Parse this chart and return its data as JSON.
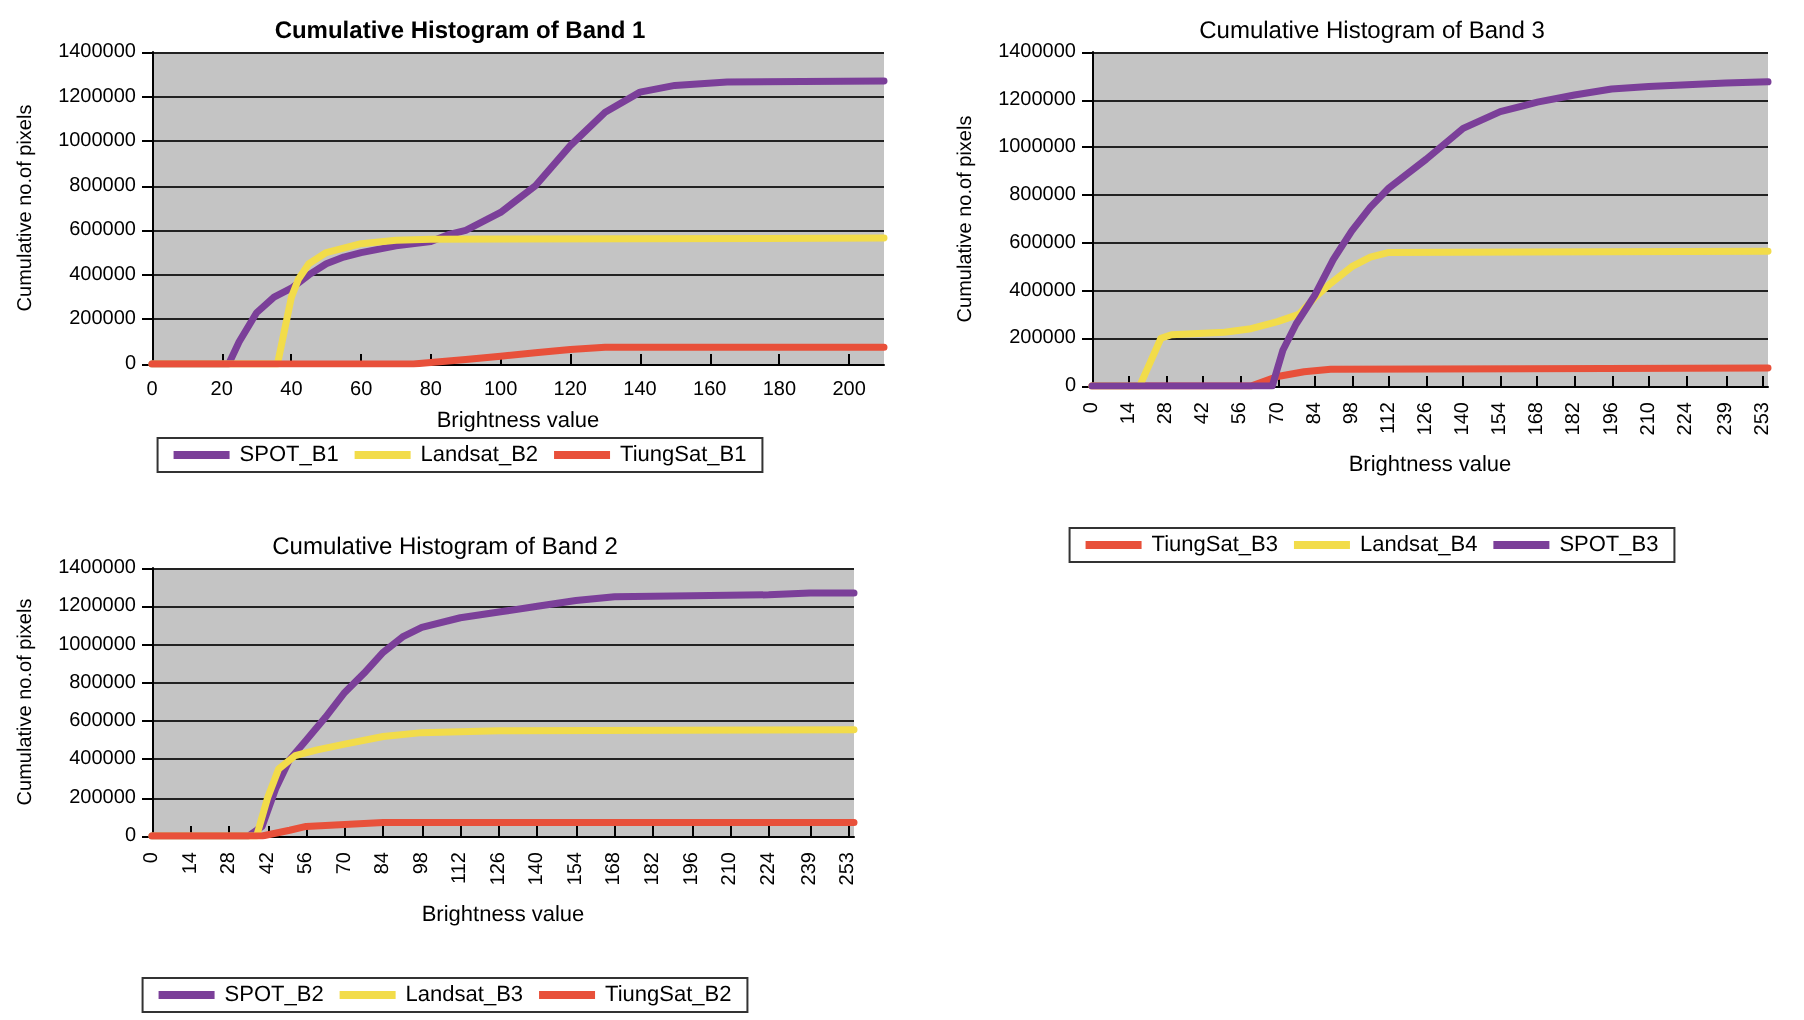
{
  "chart_data": [
    {
      "type": "line",
      "title": "Cumulative Histogram of Band 1",
      "xlabel": "Brightness value",
      "ylabel": "Cumulative no.of pixels",
      "xlim": [
        0,
        210
      ],
      "xticks": [
        0,
        20,
        40,
        60,
        80,
        100,
        120,
        140,
        160,
        180,
        200
      ],
      "ylim": [
        0,
        1400000
      ],
      "yticks": [
        0,
        200000,
        400000,
        600000,
        800000,
        1000000,
        1200000,
        1400000
      ],
      "grid": "y",
      "legend": "bottom",
      "series": [
        {
          "name": "SPOT_B1",
          "color": "#7b3f99",
          "x": [
            0,
            22,
            25,
            30,
            35,
            40,
            45,
            50,
            55,
            60,
            70,
            80,
            85,
            90,
            100,
            110,
            120,
            130,
            140,
            150,
            165,
            210
          ],
          "values": [
            0,
            0,
            100000,
            230000,
            300000,
            340000,
            400000,
            450000,
            480000,
            500000,
            530000,
            550000,
            580000,
            600000,
            680000,
            800000,
            980000,
            1130000,
            1220000,
            1250000,
            1265000,
            1270000
          ]
        },
        {
          "name": "Landsat_B2",
          "color": "#f2dc4a",
          "x": [
            0,
            36,
            38,
            40,
            42,
            45,
            50,
            55,
            60,
            70,
            80,
            210
          ],
          "values": [
            0,
            0,
            150000,
            300000,
            380000,
            450000,
            500000,
            520000,
            540000,
            555000,
            560000,
            565000
          ]
        },
        {
          "name": "TiungSat_B1",
          "color": "#e8503a",
          "x": [
            0,
            75,
            90,
            100,
            110,
            120,
            130,
            210
          ],
          "values": [
            0,
            0,
            20000,
            35000,
            50000,
            65000,
            75000,
            75000
          ]
        }
      ]
    },
    {
      "type": "line",
      "title": "Cumulative Histogram of Band 3",
      "xlabel": "Brightness value",
      "ylabel": "Cumulative no.of pixels",
      "xlim": [
        0,
        255
      ],
      "xticks": [
        0,
        14,
        28,
        42,
        56,
        70,
        84,
        98,
        112,
        126,
        140,
        154,
        168,
        182,
        196,
        210,
        224,
        239,
        253
      ],
      "ylim": [
        0,
        1400000
      ],
      "yticks": [
        0,
        200000,
        400000,
        600000,
        800000,
        1000000,
        1200000,
        1400000
      ],
      "grid": "y",
      "legend": "bottom",
      "series": [
        {
          "name": "TiungSat_B3",
          "color": "#e8503a",
          "x": [
            0,
            60,
            70,
            80,
            90,
            255
          ],
          "values": [
            0,
            0,
            40000,
            60000,
            70000,
            75000
          ]
        },
        {
          "name": "Landsat_B4",
          "color": "#f2dc4a",
          "x": [
            0,
            18,
            22,
            26,
            30,
            50,
            60,
            70,
            78,
            84,
            90,
            98,
            105,
            112,
            255
          ],
          "values": [
            0,
            0,
            100000,
            200000,
            215000,
            225000,
            240000,
            270000,
            300000,
            370000,
            430000,
            500000,
            540000,
            560000,
            565000
          ]
        },
        {
          "name": "SPOT_B3",
          "color": "#7b3f99",
          "x": [
            0,
            68,
            72,
            77,
            84,
            91,
            98,
            105,
            112,
            126,
            140,
            154,
            168,
            182,
            196,
            210,
            239,
            255
          ],
          "values": [
            0,
            0,
            150000,
            260000,
            380000,
            530000,
            650000,
            750000,
            830000,
            950000,
            1080000,
            1150000,
            1190000,
            1220000,
            1245000,
            1255000,
            1270000,
            1275000
          ]
        }
      ]
    },
    {
      "type": "line",
      "title": "Cumulative Histogram of Band 2",
      "xlabel": "Brightness value",
      "ylabel": "Cumulative no.of pixels",
      "xlim": [
        0,
        255
      ],
      "xticks": [
        0,
        14,
        28,
        42,
        56,
        70,
        84,
        98,
        112,
        126,
        140,
        154,
        168,
        182,
        196,
        210,
        224,
        239,
        253
      ],
      "ylim": [
        0,
        1400000
      ],
      "yticks": [
        0,
        200000,
        400000,
        600000,
        800000,
        1000000,
        1200000,
        1400000
      ],
      "grid": "y",
      "legend": "bottom",
      "series": [
        {
          "name": "SPOT_B2",
          "color": "#7b3f99",
          "x": [
            0,
            35,
            40,
            45,
            50,
            56,
            63,
            70,
            77,
            84,
            91,
            98,
            112,
            126,
            140,
            154,
            168,
            196,
            224,
            239,
            255
          ],
          "values": [
            0,
            0,
            50000,
            250000,
            400000,
            500000,
            620000,
            750000,
            850000,
            960000,
            1040000,
            1090000,
            1140000,
            1170000,
            1200000,
            1230000,
            1250000,
            1255000,
            1260000,
            1270000,
            1270000
          ]
        },
        {
          "name": "Landsat_B3",
          "color": "#f2dc4a",
          "x": [
            0,
            38,
            42,
            46,
            52,
            60,
            70,
            84,
            98,
            126,
            255
          ],
          "values": [
            0,
            0,
            200000,
            350000,
            420000,
            450000,
            480000,
            520000,
            540000,
            550000,
            555000
          ]
        },
        {
          "name": "TiungSat_B2",
          "color": "#e8503a",
          "x": [
            0,
            40,
            50,
            56,
            70,
            84,
            255
          ],
          "values": [
            0,
            0,
            30000,
            50000,
            60000,
            70000,
            70000
          ]
        }
      ]
    }
  ]
}
